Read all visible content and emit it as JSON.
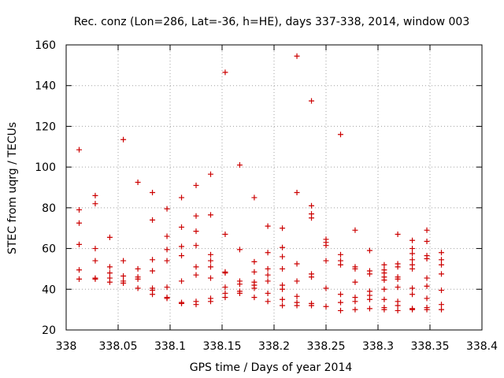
{
  "chart_data": {
    "type": "scatter",
    "title": "Rec. conz (Lon=286, Lat=-36, h=HE), days 337-338, 2014, window 003",
    "xlabel": "GPS time / Days of year 2014",
    "ylabel": "STEC from uqrg / TECUs",
    "xlim": [
      338,
      338.4
    ],
    "ylim": [
      20,
      160
    ],
    "x_ticks": [
      338,
      338.05,
      338.1,
      338.15,
      338.2,
      338.25,
      338.3,
      338.35,
      338.4
    ],
    "x_tick_labels": [
      "338",
      "338.05",
      "338.1",
      "338.15",
      "338.2",
      "338.25",
      "338.3",
      "338.35",
      "338.4"
    ],
    "y_ticks": [
      20,
      40,
      60,
      80,
      100,
      120,
      140,
      160
    ],
    "y_tick_labels": [
      "20",
      "40",
      "60",
      "80",
      "100",
      "120",
      "140",
      "160"
    ],
    "grid": true,
    "marker": "plus",
    "series": [
      {
        "color": "#cc0000",
        "points": [
          [
            338.0125,
            108.5
          ],
          [
            338.0125,
            79
          ],
          [
            338.0125,
            72.5
          ],
          [
            338.0125,
            62
          ],
          [
            338.0125,
            49.5
          ],
          [
            338.0125,
            45
          ],
          [
            338.028,
            86
          ],
          [
            338.028,
            82
          ],
          [
            338.028,
            60
          ],
          [
            338.028,
            54
          ],
          [
            338.028,
            45.5
          ],
          [
            338.028,
            45
          ],
          [
            338.042,
            65.5
          ],
          [
            338.042,
            51
          ],
          [
            338.042,
            48
          ],
          [
            338.042,
            45.5
          ],
          [
            338.042,
            43.5
          ],
          [
            338.055,
            113.5
          ],
          [
            338.055,
            54
          ],
          [
            338.055,
            46.5
          ],
          [
            338.055,
            44
          ],
          [
            338.055,
            43
          ],
          [
            338.069,
            92.5
          ],
          [
            338.069,
            50
          ],
          [
            338.069,
            46
          ],
          [
            338.069,
            45
          ],
          [
            338.069,
            40.5
          ],
          [
            338.083,
            87.5
          ],
          [
            338.083,
            74
          ],
          [
            338.083,
            54.5
          ],
          [
            338.083,
            49
          ],
          [
            338.083,
            40.5
          ],
          [
            338.083,
            39.5
          ],
          [
            338.083,
            37.5
          ],
          [
            338.097,
            79.5
          ],
          [
            338.097,
            66
          ],
          [
            338.097,
            59.5
          ],
          [
            338.097,
            54
          ],
          [
            338.097,
            41
          ],
          [
            338.097,
            36
          ],
          [
            338.097,
            35.5
          ],
          [
            338.111,
            85
          ],
          [
            338.111,
            70.5
          ],
          [
            338.111,
            61
          ],
          [
            338.111,
            56.5
          ],
          [
            338.111,
            44
          ],
          [
            338.111,
            33.5
          ],
          [
            338.111,
            33
          ],
          [
            338.125,
            91
          ],
          [
            338.125,
            76
          ],
          [
            338.125,
            68.5
          ],
          [
            338.125,
            61.5
          ],
          [
            338.125,
            51
          ],
          [
            338.125,
            47
          ],
          [
            338.125,
            34
          ],
          [
            338.125,
            32.5
          ],
          [
            338.139,
            96.5
          ],
          [
            338.139,
            76.5
          ],
          [
            338.139,
            57
          ],
          [
            338.139,
            54
          ],
          [
            338.139,
            51
          ],
          [
            338.139,
            45.5
          ],
          [
            338.139,
            35.5
          ],
          [
            338.139,
            34
          ],
          [
            338.153,
            146.5
          ],
          [
            338.153,
            67
          ],
          [
            338.153,
            48.5
          ],
          [
            338.153,
            48
          ],
          [
            338.153,
            41
          ],
          [
            338.153,
            38
          ],
          [
            338.153,
            36
          ],
          [
            338.167,
            101
          ],
          [
            338.167,
            59.5
          ],
          [
            338.167,
            44
          ],
          [
            338.167,
            42.5
          ],
          [
            338.167,
            39
          ],
          [
            338.167,
            38
          ],
          [
            338.181,
            85
          ],
          [
            338.181,
            53.5
          ],
          [
            338.181,
            48.5
          ],
          [
            338.181,
            43.5
          ],
          [
            338.181,
            42
          ],
          [
            338.181,
            40.5
          ],
          [
            338.181,
            36
          ],
          [
            338.194,
            71
          ],
          [
            338.194,
            58
          ],
          [
            338.194,
            50
          ],
          [
            338.194,
            47
          ],
          [
            338.194,
            44
          ],
          [
            338.194,
            38
          ],
          [
            338.194,
            34
          ],
          [
            338.208,
            70
          ],
          [
            338.208,
            60.5
          ],
          [
            338.208,
            56
          ],
          [
            338.208,
            50
          ],
          [
            338.208,
            42
          ],
          [
            338.208,
            40
          ],
          [
            338.208,
            35
          ],
          [
            338.208,
            32
          ],
          [
            338.222,
            154.5
          ],
          [
            338.222,
            87.5
          ],
          [
            338.222,
            52.5
          ],
          [
            338.222,
            44
          ],
          [
            338.222,
            36.5
          ],
          [
            338.222,
            33.5
          ],
          [
            338.222,
            32
          ],
          [
            338.236,
            132.5
          ],
          [
            338.236,
            81
          ],
          [
            338.236,
            77
          ],
          [
            338.236,
            75
          ],
          [
            338.236,
            47.5
          ],
          [
            338.236,
            46
          ],
          [
            338.236,
            33
          ],
          [
            338.236,
            32
          ],
          [
            338.25,
            64.5
          ],
          [
            338.25,
            63
          ],
          [
            338.25,
            61.5
          ],
          [
            338.25,
            54
          ],
          [
            338.25,
            40.5
          ],
          [
            338.25,
            31.5
          ],
          [
            338.264,
            116
          ],
          [
            338.264,
            57
          ],
          [
            338.264,
            54
          ],
          [
            338.264,
            52
          ],
          [
            338.264,
            37.5
          ],
          [
            338.264,
            33.5
          ],
          [
            338.264,
            29.5
          ],
          [
            338.278,
            69
          ],
          [
            338.278,
            51
          ],
          [
            338.278,
            50
          ],
          [
            338.278,
            43.5
          ],
          [
            338.278,
            36
          ],
          [
            338.278,
            34
          ],
          [
            338.278,
            30
          ],
          [
            338.292,
            59
          ],
          [
            338.292,
            49
          ],
          [
            338.292,
            47.5
          ],
          [
            338.292,
            39
          ],
          [
            338.292,
            37
          ],
          [
            338.292,
            35
          ],
          [
            338.292,
            30.5
          ],
          [
            338.306,
            52
          ],
          [
            338.306,
            49.5
          ],
          [
            338.306,
            48
          ],
          [
            338.306,
            46
          ],
          [
            338.306,
            44.5
          ],
          [
            338.306,
            40
          ],
          [
            338.306,
            35
          ],
          [
            338.306,
            31
          ],
          [
            338.306,
            30
          ],
          [
            338.319,
            67
          ],
          [
            338.319,
            52.5
          ],
          [
            338.319,
            51
          ],
          [
            338.319,
            46
          ],
          [
            338.319,
            45
          ],
          [
            338.319,
            41
          ],
          [
            338.319,
            34
          ],
          [
            338.319,
            32
          ],
          [
            338.319,
            29.5
          ],
          [
            338.333,
            64
          ],
          [
            338.333,
            60
          ],
          [
            338.333,
            57.5
          ],
          [
            338.333,
            54.5
          ],
          [
            338.333,
            52
          ],
          [
            338.333,
            50
          ],
          [
            338.333,
            40.5
          ],
          [
            338.333,
            37.5
          ],
          [
            338.333,
            30.5
          ],
          [
            338.333,
            30
          ],
          [
            338.347,
            69
          ],
          [
            338.347,
            63.5
          ],
          [
            338.347,
            56.5
          ],
          [
            338.347,
            55
          ],
          [
            338.347,
            45.5
          ],
          [
            338.347,
            41.5
          ],
          [
            338.347,
            35.5
          ],
          [
            338.347,
            31
          ],
          [
            338.347,
            30
          ],
          [
            338.361,
            58
          ],
          [
            338.361,
            54.5
          ],
          [
            338.361,
            52
          ],
          [
            338.361,
            47.5
          ],
          [
            338.361,
            39.5
          ],
          [
            338.361,
            32.5
          ],
          [
            338.361,
            30
          ]
        ]
      }
    ]
  }
}
